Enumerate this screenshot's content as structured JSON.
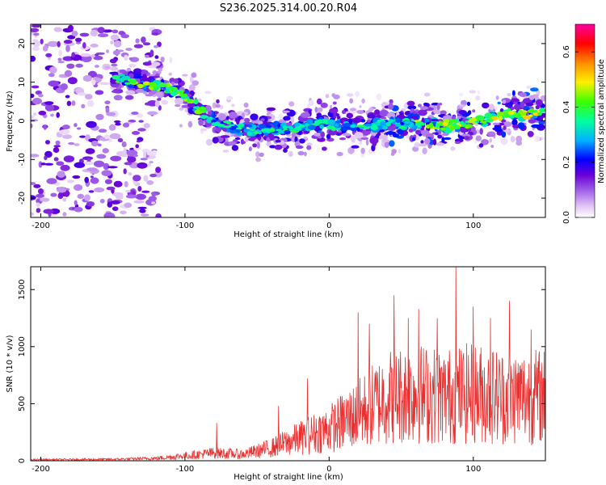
{
  "title": "S236.2025.314.00.20.R04",
  "chart_data": [
    {
      "type": "heatmap",
      "panel": "spectrogram",
      "xlabel": "Height of straight line (km)",
      "ylabel": "Frequency (Hz)",
      "xlim": [
        -207,
        150
      ],
      "ylim": [
        -25,
        25
      ],
      "xticks": [
        -200,
        -100,
        0,
        100
      ],
      "xtick_labels": [
        "-200",
        "-100",
        "0",
        "100"
      ],
      "yticks": [
        20,
        10,
        0,
        -10,
        -20
      ],
      "ytick_labels": [
        "20",
        "10",
        "0",
        "-10",
        "-20"
      ],
      "colorbar": {
        "label": "Normalized spectral amplitude",
        "range": [
          0,
          0.7
        ],
        "ticks": [
          0.0,
          0.2,
          0.4,
          0.6
        ],
        "tick_labels": [
          "0.0",
          "0.2",
          "0.4",
          "0.6"
        ],
        "colormap": [
          "#ffffff",
          "#e0c4f4",
          "#a060e8",
          "#6a00d8",
          "#0000ff",
          "#00b4ff",
          "#00ff9c",
          "#3cff00",
          "#fff000",
          "#ff8c00",
          "#ff0000",
          "#ff00a0"
        ]
      },
      "ridge": [
        {
          "x": -145,
          "y": 11
        },
        {
          "x": -125,
          "y": 9.5
        },
        {
          "x": -110,
          "y": 8
        },
        {
          "x": -95,
          "y": 5
        },
        {
          "x": -85,
          "y": 1
        },
        {
          "x": -70,
          "y": -1.5
        },
        {
          "x": -50,
          "y": -2.5
        },
        {
          "x": -30,
          "y": -2
        },
        {
          "x": -10,
          "y": -1
        },
        {
          "x": 10,
          "y": -1
        },
        {
          "x": 30,
          "y": -1
        },
        {
          "x": 50,
          "y": -0.5
        },
        {
          "x": 70,
          "y": -1
        },
        {
          "x": 90,
          "y": -1
        },
        {
          "x": 110,
          "y": 0.5
        },
        {
          "x": 130,
          "y": 2
        },
        {
          "x": 150,
          "y": 2
        }
      ]
    },
    {
      "type": "line",
      "panel": "snr",
      "xlabel": "Height of straight line (km)",
      "ylabel": "SNR (10 * v/v)",
      "xlim": [
        -207,
        150
      ],
      "ylim": [
        0,
        1700
      ],
      "xticks": [
        -200,
        -100,
        0,
        100
      ],
      "xtick_labels": [
        "-200",
        "-100",
        "0",
        "100"
      ],
      "yticks": [
        0,
        500,
        1000,
        1500
      ],
      "ytick_labels": [
        "0",
        "500",
        "1000",
        "1500"
      ],
      "color": "#e83030",
      "envelope": [
        {
          "x": -207,
          "y": 15
        },
        {
          "x": -150,
          "y": 20
        },
        {
          "x": -120,
          "y": 35
        },
        {
          "x": -100,
          "y": 70
        },
        {
          "x": -80,
          "y": 110
        },
        {
          "x": -60,
          "y": 90
        },
        {
          "x": -40,
          "y": 180
        },
        {
          "x": -20,
          "y": 320
        },
        {
          "x": 0,
          "y": 450
        },
        {
          "x": 20,
          "y": 650
        },
        {
          "x": 40,
          "y": 900
        },
        {
          "x": 60,
          "y": 950
        },
        {
          "x": 80,
          "y": 900
        },
        {
          "x": 100,
          "y": 950
        },
        {
          "x": 120,
          "y": 900
        },
        {
          "x": 150,
          "y": 900
        }
      ],
      "spikes": [
        {
          "x": -78,
          "y": 330
        },
        {
          "x": -35,
          "y": 480
        },
        {
          "x": -15,
          "y": 720
        },
        {
          "x": 20,
          "y": 1300
        },
        {
          "x": 28,
          "y": 1200
        },
        {
          "x": 45,
          "y": 1450
        },
        {
          "x": 55,
          "y": 1250
        },
        {
          "x": 62,
          "y": 1330
        },
        {
          "x": 75,
          "y": 1250
        },
        {
          "x": 88,
          "y": 1700
        },
        {
          "x": 100,
          "y": 1350
        },
        {
          "x": 112,
          "y": 1250
        },
        {
          "x": 125,
          "y": 1400
        },
        {
          "x": 140,
          "y": 1150
        }
      ]
    }
  ]
}
